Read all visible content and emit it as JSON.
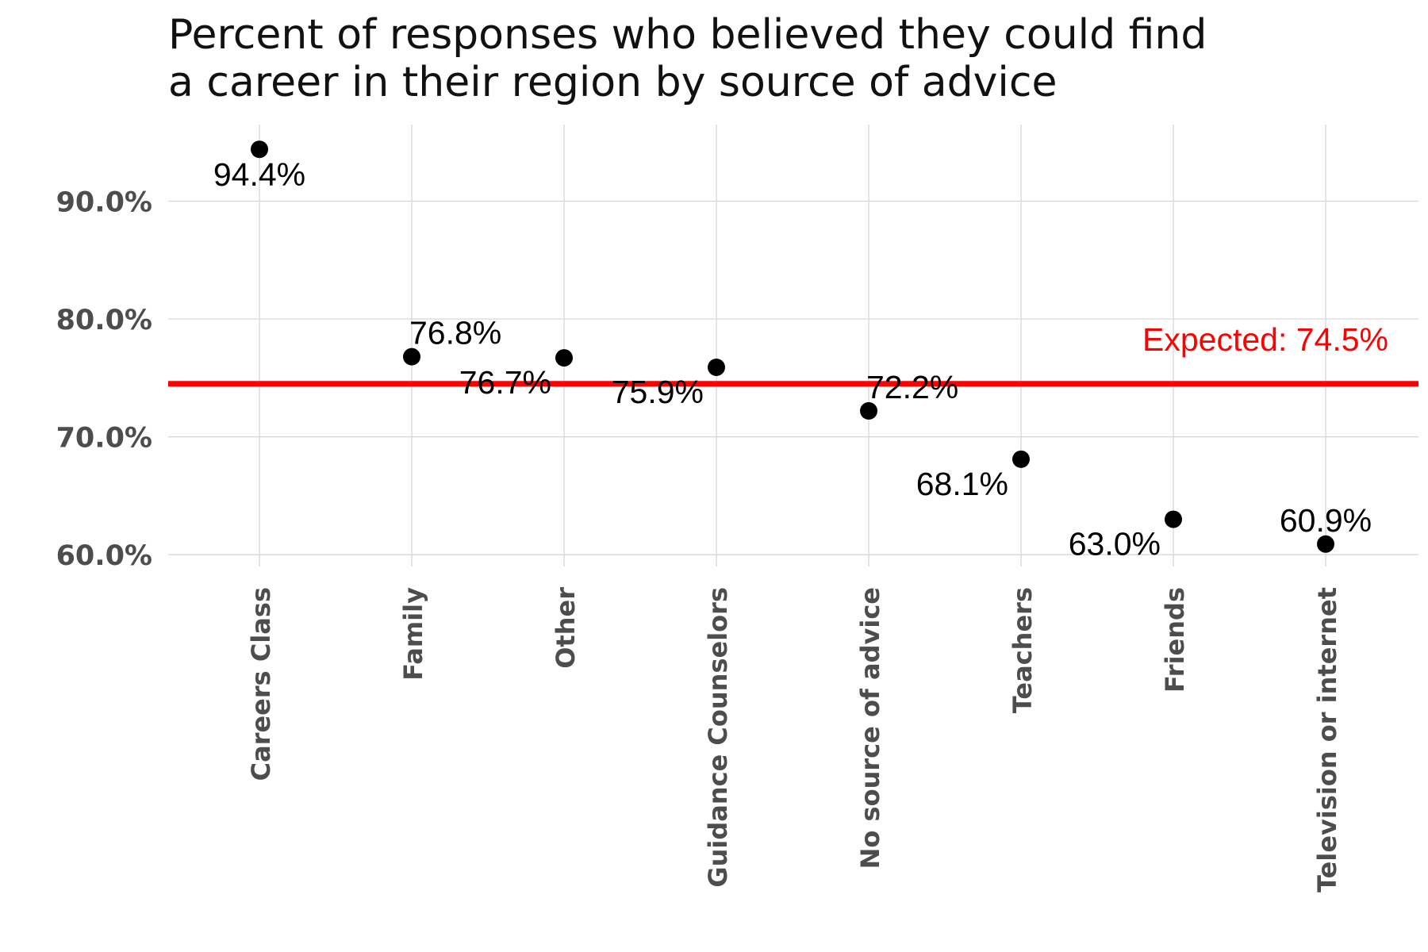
{
  "chart_data": {
    "type": "scatter",
    "title_lines": [
      "Percent of responses who believed they could find",
      "a career in their region by source of advice"
    ],
    "categories": [
      "Careers Class",
      "Family",
      "Other",
      "Guidance Counselors",
      "No source of advice",
      "Teachers",
      "Friends",
      "Television or internet"
    ],
    "values": [
      94.4,
      76.8,
      76.7,
      75.9,
      72.2,
      68.1,
      63.0,
      60.9
    ],
    "value_labels": [
      "94.4%",
      "76.8%",
      "76.7%",
      "75.9%",
      "72.2%",
      "68.1%",
      "63.0%",
      "60.9%"
    ],
    "label_placement": [
      "below",
      "above-right",
      "below-left",
      "below-left",
      "above-right",
      "below-left",
      "below-left",
      "above"
    ],
    "ylim": [
      59,
      96.5
    ],
    "yticks": [
      60,
      70,
      80,
      90
    ],
    "ytick_labels": [
      "60.0%",
      "70.0%",
      "80.0%",
      "90.0%"
    ],
    "reference_line": {
      "value": 74.5,
      "label": "Expected: 74.5%",
      "color": "#ff0000"
    },
    "grid": true,
    "xlabel": "",
    "ylabel": "",
    "point_color": "#000000",
    "grid_color": "#d3d3d3"
  }
}
